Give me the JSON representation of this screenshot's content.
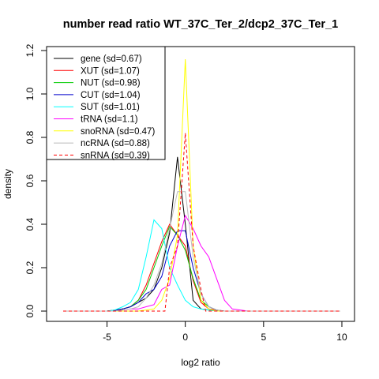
{
  "chart_data": {
    "type": "line",
    "title": "number read ratio WT_37C_Ter_2/dcp2_37C_Ter_1",
    "xlabel": "log2 ratio",
    "ylabel": "density",
    "xlim": [
      -8,
      10
    ],
    "ylim": [
      0,
      1.2
    ],
    "xticks": [
      -5,
      0,
      5,
      10
    ],
    "yticks": [
      0.0,
      0.2,
      0.4,
      0.6,
      0.8,
      1.0,
      1.2
    ],
    "xtick_labels": [
      "-5",
      "0",
      "5",
      "10"
    ],
    "ytick_labels": [
      "0.0",
      "0.2",
      "0.4",
      "0.6",
      "0.8",
      "1.0",
      "1.2"
    ],
    "grid": false,
    "legend_position": "top-left",
    "series": [
      {
        "name": "gene (sd=0.67)",
        "color": "#000000",
        "dash": false,
        "x": [
          -7.8,
          -5,
          -4.5,
          -4,
          -3.5,
          -3,
          -2.5,
          -2,
          -1.5,
          -1,
          -0.5,
          0,
          0.5,
          1,
          1.5,
          2,
          2.5,
          3,
          3.5,
          4,
          9.9
        ],
        "y": [
          0,
          0,
          0.005,
          0.01,
          0.02,
          0.04,
          0.06,
          0.1,
          0.2,
          0.36,
          0.71,
          0.4,
          0.05,
          0.01,
          0.005,
          0,
          0,
          0,
          0,
          0,
          0
        ]
      },
      {
        "name": "XUT (sd=1.07)",
        "color": "#ff0000",
        "dash": false,
        "x": [
          -7.8,
          -5,
          -4.5,
          -4,
          -3.5,
          -3,
          -2.5,
          -2,
          -1.5,
          -1,
          -0.5,
          0,
          0.5,
          1,
          1.5,
          2,
          2.5,
          3,
          3.5,
          4,
          9.9
        ],
        "y": [
          0,
          0,
          0.003,
          0.01,
          0.02,
          0.05,
          0.12,
          0.22,
          0.32,
          0.4,
          0.35,
          0.3,
          0.14,
          0.04,
          0.01,
          0.005,
          0,
          0,
          0,
          0,
          0
        ]
      },
      {
        "name": "NUT (sd=0.98)",
        "color": "#00cc00",
        "dash": false,
        "x": [
          -7.8,
          -5,
          -4.5,
          -4,
          -3.5,
          -3,
          -2.5,
          -2,
          -1.5,
          -1,
          -0.5,
          0,
          0.5,
          1,
          1.5,
          2,
          2.5,
          3,
          3.5,
          4,
          9.9
        ],
        "y": [
          0,
          0,
          0.003,
          0.01,
          0.02,
          0.05,
          0.1,
          0.2,
          0.3,
          0.39,
          0.35,
          0.28,
          0.15,
          0.05,
          0.02,
          0.005,
          0,
          0,
          0,
          0,
          0
        ]
      },
      {
        "name": "CUT (sd=1.04)",
        "color": "#0000cc",
        "dash": false,
        "x": [
          -7.8,
          -5,
          -4.5,
          -4,
          -3.5,
          -3,
          -2.5,
          -2,
          -1.5,
          -1,
          -0.5,
          0,
          0.5,
          1,
          1.5,
          2,
          2.5,
          3,
          3.5,
          4,
          9.9
        ],
        "y": [
          0,
          0,
          0.003,
          0.01,
          0.02,
          0.04,
          0.08,
          0.1,
          0.16,
          0.3,
          0.37,
          0.37,
          0.2,
          0.08,
          0.02,
          0.005,
          0,
          0,
          0,
          0,
          0
        ]
      },
      {
        "name": "SUT (sd=1.01)",
        "color": "#00ffff",
        "dash": false,
        "x": [
          -7.8,
          -5,
          -4.5,
          -4,
          -3.5,
          -3,
          -2.5,
          -2,
          -1.5,
          -1,
          -0.5,
          0,
          0.5,
          1,
          1.5,
          2,
          2.5,
          3,
          3.5,
          4,
          9.9
        ],
        "y": [
          0,
          0,
          0.005,
          0.02,
          0.04,
          0.1,
          0.25,
          0.42,
          0.38,
          0.2,
          0.12,
          0.05,
          0.02,
          0.01,
          0.005,
          0,
          0,
          0,
          0,
          0,
          0
        ]
      },
      {
        "name": "tRNA (sd=1.1)",
        "color": "#ff00ff",
        "dash": false,
        "x": [
          -7.8,
          -5,
          -4.5,
          -4,
          -3.5,
          -3,
          -2.5,
          -2,
          -1.5,
          -1,
          -0.5,
          0,
          0.5,
          1,
          1.5,
          2,
          2.5,
          3,
          3.5,
          4,
          9.9
        ],
        "y": [
          0,
          0,
          0,
          0.005,
          0.01,
          0.01,
          0.02,
          0.03,
          0.1,
          0.12,
          0.3,
          0.44,
          0.38,
          0.3,
          0.25,
          0.15,
          0.05,
          0.01,
          0.005,
          0,
          0
        ]
      },
      {
        "name": "snoRNA (sd=0.47)",
        "color": "#ffff00",
        "dash": false,
        "x": [
          -7.8,
          -3,
          -2,
          -1.5,
          -1,
          -0.5,
          0,
          0.5,
          1,
          1.5,
          2,
          9.9
        ],
        "y": [
          0,
          0,
          0.01,
          0.05,
          0.15,
          0.35,
          1.16,
          0.3,
          0.05,
          0.01,
          0,
          0
        ]
      },
      {
        "name": "ncRNA (sd=0.88)",
        "color": "#bbbbbb",
        "dash": false,
        "x": [
          -7.8,
          -5,
          -4.5,
          -4,
          -3.5,
          -3,
          -2.5,
          -2,
          -1.5,
          -1,
          -0.5,
          0,
          0.5,
          1,
          1.5,
          2,
          2.5,
          3,
          9.9
        ],
        "y": [
          0,
          0,
          0,
          0.005,
          0.01,
          0.02,
          0.06,
          0.12,
          0.22,
          0.38,
          0.55,
          0.55,
          0.25,
          0.08,
          0.02,
          0.005,
          0,
          0,
          0
        ]
      },
      {
        "name": "snRNA (sd=0.39)",
        "color": "#ff0000",
        "dash": true,
        "x": [
          -7.8,
          -1.3,
          -1,
          -0.5,
          0,
          0.5,
          1,
          1.3,
          9.9
        ],
        "y": [
          0,
          0,
          0.2,
          0.3,
          0.82,
          0.3,
          0.1,
          0,
          0
        ]
      }
    ]
  }
}
